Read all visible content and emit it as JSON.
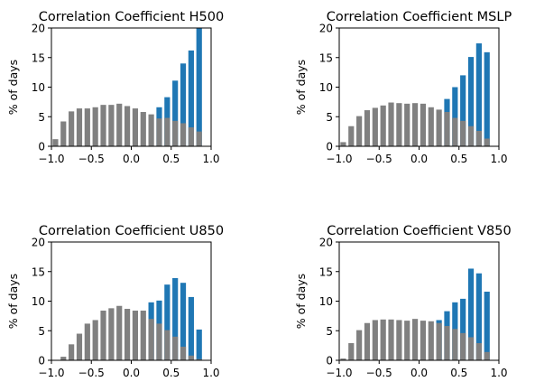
{
  "chart_data": [
    {
      "type": "bar",
      "title": "Correlation Coefficient H500",
      "ylabel": "% of days",
      "xlim": [
        -1.0,
        1.0
      ],
      "ylim": [
        0,
        20
      ],
      "xticks": [
        "−1.0",
        "−0.5",
        "0.0",
        "0.5",
        "1.0"
      ],
      "yticks": [
        "0",
        "5",
        "10",
        "15",
        "20"
      ],
      "colors": {
        "gray": "#808080",
        "blue": "#1f77b4"
      },
      "x": [
        -0.95,
        -0.85,
        -0.75,
        -0.65,
        -0.55,
        -0.45,
        -0.35,
        -0.25,
        -0.15,
        -0.05,
        0.05,
        0.15,
        0.25,
        0.35,
        0.45,
        0.55,
        0.65,
        0.75,
        0.85
      ],
      "series": [
        {
          "values": [
            1.2,
            4.2,
            5.9,
            6.4,
            6.4,
            6.6,
            7.0,
            7.0,
            7.2,
            6.8,
            6.4,
            5.8,
            5.4,
            4.7,
            4.8,
            4.3,
            3.9,
            3.2,
            2.5
          ]
        },
        {
          "values": [
            1.2,
            4.2,
            5.9,
            6.4,
            6.4,
            6.6,
            7.0,
            7.0,
            7.2,
            6.8,
            6.4,
            5.8,
            5.4,
            6.6,
            8.3,
            11.1,
            14.0,
            16.2,
            20.0
          ]
        }
      ]
    },
    {
      "type": "bar",
      "title": "Correlation Coefficient MSLP",
      "ylabel": "% of days",
      "xlim": [
        -1.0,
        1.0
      ],
      "ylim": [
        0,
        20
      ],
      "xticks": [
        "−1.0",
        "−0.5",
        "0.0",
        "0.5",
        "1.0"
      ],
      "yticks": [
        "0",
        "5",
        "10",
        "15",
        "20"
      ],
      "colors": {
        "gray": "#808080",
        "blue": "#1f77b4"
      },
      "x": [
        -0.95,
        -0.85,
        -0.75,
        -0.65,
        -0.55,
        -0.45,
        -0.35,
        -0.25,
        -0.15,
        -0.05,
        0.05,
        0.15,
        0.25,
        0.35,
        0.45,
        0.55,
        0.65,
        0.75,
        0.85
      ],
      "series": [
        {
          "values": [
            0.7,
            3.4,
            5.1,
            6.1,
            6.5,
            6.9,
            7.4,
            7.3,
            7.2,
            7.3,
            7.2,
            6.6,
            6.2,
            5.8,
            4.8,
            4.3,
            3.4,
            2.6,
            1.3
          ]
        },
        {
          "values": [
            0.7,
            3.4,
            5.1,
            6.1,
            6.5,
            6.9,
            7.4,
            7.3,
            7.2,
            7.3,
            7.2,
            6.6,
            6.2,
            8.0,
            10.0,
            12.0,
            15.1,
            17.4,
            15.9
          ]
        }
      ]
    },
    {
      "type": "bar",
      "title": "Correlation Coefficient U850",
      "ylabel": "% of days",
      "xlim": [
        -1.0,
        1.0
      ],
      "ylim": [
        0,
        20
      ],
      "xticks": [
        "−1.0",
        "−0.5",
        "0.0",
        "0.5",
        "1.0"
      ],
      "yticks": [
        "0",
        "5",
        "10",
        "15",
        "20"
      ],
      "colors": {
        "gray": "#808080",
        "blue": "#1f77b4"
      },
      "x": [
        -0.85,
        -0.75,
        -0.65,
        -0.55,
        -0.45,
        -0.35,
        -0.25,
        -0.15,
        -0.05,
        0.05,
        0.15,
        0.25,
        0.35,
        0.45,
        0.55,
        0.65,
        0.75,
        0.85
      ],
      "series": [
        {
          "values": [
            0.6,
            2.7,
            4.5,
            6.2,
            6.8,
            8.4,
            8.8,
            9.2,
            8.7,
            8.4,
            8.4,
            7.0,
            6.2,
            5.1,
            4.0,
            2.3,
            0.8,
            0.2
          ]
        },
        {
          "values": [
            0.6,
            2.7,
            4.5,
            6.2,
            6.8,
            8.4,
            8.8,
            9.2,
            8.7,
            8.4,
            8.4,
            9.8,
            10.1,
            12.8,
            13.9,
            13.1,
            10.7,
            5.2
          ]
        }
      ]
    },
    {
      "type": "bar",
      "title": "Correlation Coefficient V850",
      "ylabel": "% of days",
      "xlim": [
        -1.0,
        1.0
      ],
      "ylim": [
        0,
        20
      ],
      "xticks": [
        "−1.0",
        "−0.5",
        "0.0",
        "0.5",
        "1.0"
      ],
      "yticks": [
        "0",
        "5",
        "10",
        "15",
        "20"
      ],
      "colors": {
        "gray": "#808080",
        "blue": "#1f77b4"
      },
      "x": [
        -0.95,
        -0.85,
        -0.75,
        -0.65,
        -0.55,
        -0.45,
        -0.35,
        -0.25,
        -0.15,
        -0.05,
        0.05,
        0.15,
        0.25,
        0.35,
        0.45,
        0.55,
        0.65,
        0.75,
        0.85
      ],
      "series": [
        {
          "values": [
            0.3,
            2.9,
            5.1,
            6.3,
            6.8,
            6.9,
            6.9,
            6.8,
            6.7,
            7.0,
            6.7,
            6.6,
            6.3,
            5.8,
            5.3,
            4.6,
            3.9,
            2.9,
            1.4
          ]
        },
        {
          "values": [
            0.3,
            2.9,
            5.1,
            6.3,
            6.8,
            6.9,
            6.9,
            6.8,
            6.7,
            7.0,
            6.7,
            6.6,
            6.8,
            8.3,
            9.8,
            10.4,
            15.5,
            14.7,
            11.6
          ]
        }
      ]
    }
  ]
}
